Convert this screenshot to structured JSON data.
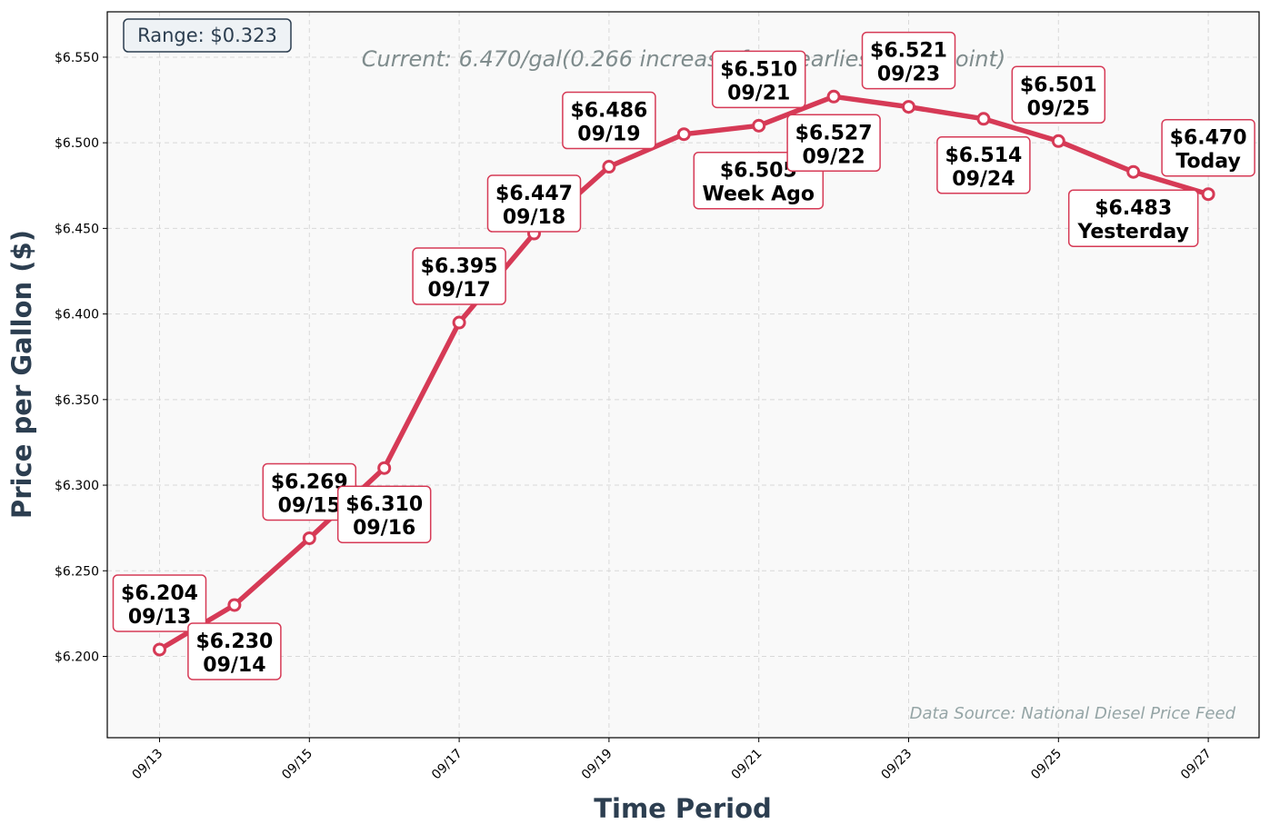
{
  "chart_data": {
    "type": "line",
    "x": [
      "09/13",
      "09/14",
      "09/15",
      "09/16",
      "09/17",
      "09/18",
      "09/19",
      "09/20",
      "09/21",
      "09/22",
      "09/23",
      "09/24",
      "09/25",
      "09/26",
      "09/27"
    ],
    "series": [
      {
        "values": [
          6.204,
          6.23,
          6.269,
          6.31,
          6.395,
          6.447,
          6.486,
          6.505,
          6.51,
          6.527,
          6.521,
          6.514,
          6.501,
          6.483,
          6.47
        ],
        "color": "#d63a56"
      }
    ],
    "data_labels": [
      {
        "price": "$6.204",
        "tag": "09/13"
      },
      {
        "price": "$6.230",
        "tag": "09/14"
      },
      {
        "price": "$6.269",
        "tag": "09/15"
      },
      {
        "price": "$6.310",
        "tag": "09/16"
      },
      {
        "price": "$6.395",
        "tag": "09/17"
      },
      {
        "price": "$6.447",
        "tag": "09/18"
      },
      {
        "price": "$6.486",
        "tag": "09/19"
      },
      {
        "price": "$6.505",
        "tag": "Week Ago"
      },
      {
        "price": "$6.510",
        "tag": "09/21"
      },
      {
        "price": "$6.527",
        "tag": "09/22"
      },
      {
        "price": "$6.521",
        "tag": "09/23"
      },
      {
        "price": "$6.514",
        "tag": "09/24"
      },
      {
        "price": "$6.501",
        "tag": "09/25"
      },
      {
        "price": "$6.483",
        "tag": "Yesterday"
      },
      {
        "price": "$6.470",
        "tag": "Today"
      }
    ],
    "xticks": [
      "09/13",
      "09/15",
      "09/17",
      "09/19",
      "09/21",
      "09/23",
      "09/25",
      "09/27"
    ],
    "yticks": [
      "$6.200",
      "$6.250",
      "$6.300",
      "$6.350",
      "$6.400",
      "$6.450",
      "$6.500",
      "$6.550"
    ],
    "ytick_values": [
      6.2,
      6.25,
      6.3,
      6.35,
      6.4,
      6.45,
      6.5,
      6.55
    ],
    "ylim": [
      6.1525,
      6.5765
    ],
    "xlabel": "Time Period",
    "ylabel": "Price per Gallon ($)",
    "grid": true,
    "annotations": {
      "range": "Range: $0.323",
      "current": "Current: 6.470/gal(0.266 increase from earliest data point)",
      "source": "Data Source: National Diesel Price Feed"
    },
    "colors": {
      "line": "#d63a56",
      "plot_background": "#f9f9f9",
      "axis_label": "#2c3e50"
    }
  }
}
